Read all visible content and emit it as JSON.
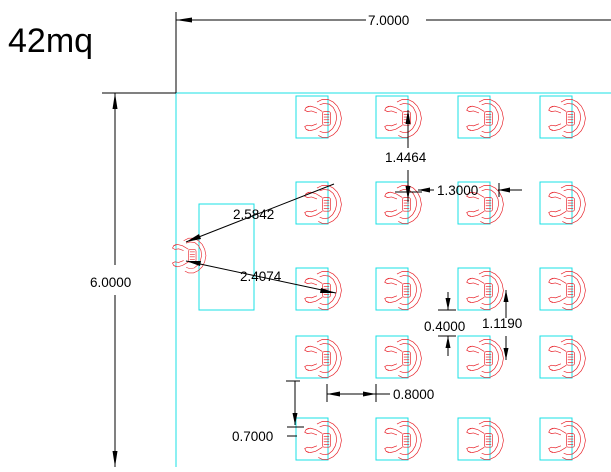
{
  "drawing": {
    "title": "42mq",
    "dimensions": {
      "overall_width": "7.0000",
      "overall_height": "6.0000",
      "diag_upper": "2.5842",
      "diag_lower": "2.4074",
      "row_pitch": "1.4464",
      "col_gap": "1.3000",
      "vertical_gap": "0.4000",
      "seat_offset": "1.1190",
      "aisle_width": "0.8000",
      "bottom_gap": "0.7000"
    },
    "colors": {
      "frame": "#19e0e6",
      "seat": "#e8222a",
      "dimension": "#000000",
      "background": "#ffffff"
    },
    "icons": {
      "seat_symbol": "seated-person-chair-icon",
      "room_outline": "room-rectangle"
    }
  }
}
